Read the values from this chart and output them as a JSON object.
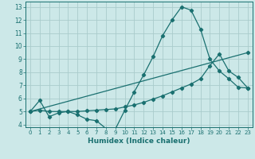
{
  "xlabel": "Humidex (Indice chaleur)",
  "background_color": "#cce8e8",
  "grid_color": "#aacccc",
  "line_color": "#1a7070",
  "xlim": [
    -0.5,
    23.5
  ],
  "ylim": [
    3.8,
    13.4
  ],
  "xticks": [
    0,
    1,
    2,
    3,
    4,
    5,
    6,
    7,
    8,
    9,
    10,
    11,
    12,
    13,
    14,
    15,
    16,
    17,
    18,
    19,
    20,
    21,
    22,
    23
  ],
  "yticks": [
    4,
    5,
    6,
    7,
    8,
    9,
    10,
    11,
    12,
    13
  ],
  "line1_x": [
    0,
    1,
    2,
    3,
    4,
    5,
    6,
    7,
    8,
    9,
    10,
    11,
    12,
    13,
    14,
    15,
    16,
    17,
    18,
    19,
    20,
    21,
    22,
    23
  ],
  "line1_y": [
    5.0,
    5.85,
    4.6,
    4.9,
    5.0,
    4.75,
    4.4,
    4.3,
    3.7,
    3.65,
    5.1,
    6.5,
    7.8,
    9.2,
    10.8,
    12.0,
    13.0,
    12.75,
    11.3,
    9.0,
    8.1,
    7.5,
    6.85,
    6.8
  ],
  "line2_x": [
    0,
    1,
    2,
    3,
    4,
    5,
    6,
    7,
    8,
    9,
    10,
    11,
    12,
    13,
    14,
    15,
    16,
    17,
    18,
    19,
    20,
    21,
    22,
    23
  ],
  "line2_y": [
    5.0,
    5.1,
    5.0,
    5.0,
    5.0,
    5.0,
    5.05,
    5.1,
    5.15,
    5.2,
    5.35,
    5.5,
    5.7,
    5.95,
    6.2,
    6.5,
    6.8,
    7.1,
    7.5,
    8.5,
    9.4,
    8.1,
    7.6,
    6.8
  ],
  "line3_x": [
    0,
    23
  ],
  "line3_y": [
    5.0,
    9.5
  ]
}
